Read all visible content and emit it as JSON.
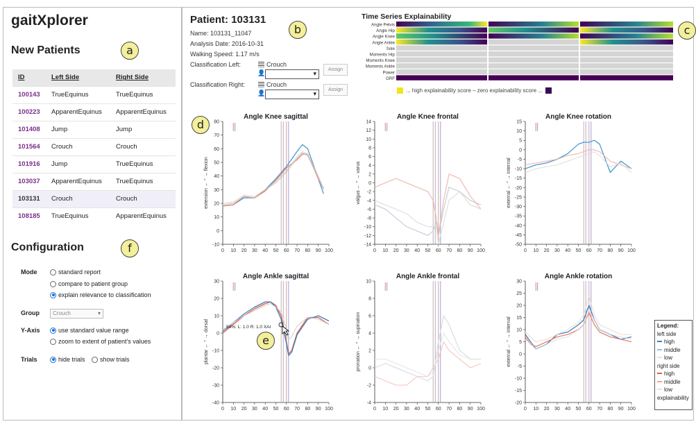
{
  "app": {
    "title": "gaitXplorer"
  },
  "markers": {
    "a": "a",
    "b": "b",
    "c": "c",
    "d": "d",
    "e": "e",
    "f": "f"
  },
  "new_patients": {
    "title": "New Patients",
    "columns": [
      "ID",
      "Left Side",
      "Right Side"
    ],
    "rows": [
      {
        "id": "100143",
        "left": "TrueEquinus",
        "right": "TrueEquinus"
      },
      {
        "id": "100223",
        "left": "ApparentEquinus",
        "right": "ApparentEquinus"
      },
      {
        "id": "101408",
        "left": "Jump",
        "right": "Jump"
      },
      {
        "id": "101564",
        "left": "Crouch",
        "right": "Crouch"
      },
      {
        "id": "101916",
        "left": "Jump",
        "right": "TrueEquinus"
      },
      {
        "id": "103037",
        "left": "ApparentEquinus",
        "right": "TrueEquinus"
      },
      {
        "id": "103131",
        "left": "Crouch",
        "right": "Crouch"
      },
      {
        "id": "108185",
        "left": "TrueEquinus",
        "right": "ApparentEquinus"
      }
    ],
    "selected_id": "103131"
  },
  "configuration": {
    "title": "Configuration",
    "mode_label": "Mode",
    "mode_options": [
      "standard report",
      "compare to patient group",
      "explain relevance to classification"
    ],
    "mode_selected": 2,
    "group_label": "Group",
    "group_value": "Crouch",
    "yaxis_label": "Y-Axis",
    "yaxis_options": [
      "use standard value range",
      "zoom to extent of patient's values"
    ],
    "yaxis_selected": 0,
    "trials_label": "Trials",
    "trials_options": [
      "hide trials",
      "show trials"
    ],
    "trials_selected": 0
  },
  "patient": {
    "title": "Patient: 103131",
    "name": "Name: 103131_11047",
    "analysis_date": "Analysis Date: 2016-10-31",
    "walking_speed": "Walking Speed: 1.17 m/s",
    "class_left_label": "Classification Left:",
    "class_left_value": "Crouch",
    "class_right_label": "Classification Right:",
    "class_right_value": "Crouch",
    "assign_label": "Assign"
  },
  "time_series": {
    "title": "Time Series Explainability",
    "rows": [
      "Angle Pelvis",
      "Angle Hip",
      "Angle Knee",
      "Angle Ankle",
      "Sole",
      "Moments Hip",
      "Moments Knee",
      "Moments Ankle",
      "Power",
      "GRF"
    ],
    "legend_text": "... high explainability score – zero explainability score ...",
    "color_high": "#f2e41c",
    "color_zero": "#3b0a55"
  },
  "chart_data": [
    {
      "type": "line",
      "title": "Angle Knee sagittal",
      "ylabel": "extension ← ° → flexion",
      "xlim": [
        0,
        100
      ],
      "ylim": [
        -10,
        80
      ],
      "xticks": [
        0,
        10,
        20,
        30,
        40,
        50,
        60,
        70,
        80,
        90,
        100
      ],
      "yticks": [
        -10,
        0,
        10,
        20,
        30,
        40,
        50,
        60,
        70,
        80
      ],
      "x": [
        0,
        10,
        20,
        30,
        40,
        50,
        60,
        70,
        75,
        80,
        90,
        95
      ],
      "series": [
        {
          "values": [
            18,
            19,
            24,
            24,
            30,
            38,
            47,
            58,
            63,
            60,
            38,
            27
          ],
          "color": "#4a9ad0",
          "opacity": 1
        },
        {
          "values": [
            18,
            19,
            25,
            24,
            29,
            37,
            46,
            52,
            56,
            56,
            38,
            31
          ],
          "color": "#e8836a",
          "opacity": 1
        },
        {
          "values": [
            19,
            20,
            25,
            24,
            30,
            35,
            43,
            53,
            57,
            55,
            39,
            30
          ],
          "color": "#bfbfbf",
          "opacity": 0.7
        },
        {
          "values": [
            20,
            21,
            26,
            25,
            30,
            36,
            44,
            54,
            58,
            56,
            40,
            31
          ],
          "color": "#d8c4bd",
          "opacity": 0.6
        }
      ]
    },
    {
      "type": "line",
      "title": "Angle Knee frontal",
      "ylabel": "valgus ← ° → varus",
      "xlim": [
        0,
        100
      ],
      "ylim": [
        -14,
        14
      ],
      "xticks": [
        0,
        10,
        20,
        30,
        40,
        50,
        60,
        70,
        80,
        90,
        100
      ],
      "yticks": [
        -14,
        -12,
        -10,
        -8,
        -6,
        -4,
        -2,
        0,
        2,
        4,
        6,
        8,
        10,
        12,
        14
      ],
      "x": [
        0,
        10,
        20,
        30,
        40,
        50,
        55,
        58,
        60,
        65,
        70,
        80,
        90,
        100
      ],
      "series": [
        {
          "values": [
            -5,
            -6,
            -8,
            -10,
            -11,
            -12,
            -11,
            -9,
            -12,
            -6,
            -1,
            -2,
            -4,
            -5
          ],
          "color": "#c8ccd8",
          "opacity": 0.9
        },
        {
          "values": [
            -1,
            0,
            1,
            0,
            -1,
            -2,
            -4,
            -8,
            -12,
            -4,
            2,
            1,
            -3,
            -6
          ],
          "color": "#e9b1a3",
          "opacity": 0.8
        },
        {
          "values": [
            -4,
            -5,
            -6,
            -7,
            -9,
            -10,
            -10,
            -10,
            -14,
            -9,
            -4,
            -2,
            -5,
            -6
          ],
          "color": "#d9d9d9",
          "opacity": 0.8
        }
      ]
    },
    {
      "type": "line",
      "title": "Angle Knee rotation",
      "ylabel": "external ← ° → internal",
      "xlim": [
        0,
        100
      ],
      "ylim": [
        -50,
        15
      ],
      "xticks": [
        0,
        10,
        20,
        30,
        40,
        50,
        60,
        70,
        80,
        90,
        100
      ],
      "yticks": [
        -50,
        -45,
        -40,
        -35,
        -30,
        -25,
        -20,
        -15,
        -10,
        -5,
        0,
        5,
        10,
        15
      ],
      "x": [
        0,
        10,
        20,
        30,
        40,
        50,
        55,
        60,
        65,
        70,
        80,
        90,
        100
      ],
      "series": [
        {
          "values": [
            -10,
            -8,
            -7,
            -5,
            -2,
            3,
            4,
            4,
            5,
            3,
            -12,
            -6,
            -10
          ],
          "color": "#4a9ad0",
          "opacity": 1
        },
        {
          "values": [
            -8,
            -7,
            -6,
            -5,
            -3,
            -2,
            -1,
            0,
            0,
            -1,
            -6,
            -8,
            -10
          ],
          "color": "#f0b3a4",
          "opacity": 0.8
        },
        {
          "values": [
            -12,
            -10,
            -9,
            -8,
            -6,
            -4,
            -3,
            -2,
            -1,
            -3,
            -9,
            -7,
            -12
          ],
          "color": "#dddddd",
          "opacity": 0.8
        }
      ]
    },
    {
      "type": "line",
      "title": "Angle Ankle sagittal",
      "ylabel": "plantar ← ° → dorsal",
      "xlim": [
        0,
        100
      ],
      "ylim": [
        -40,
        30
      ],
      "xticks": [
        0,
        10,
        20,
        30,
        40,
        50,
        60,
        70,
        80,
        90,
        100
      ],
      "yticks": [
        -40,
        -30,
        -20,
        -10,
        0,
        10,
        20,
        30
      ],
      "x": [
        0,
        10,
        20,
        30,
        40,
        45,
        50,
        55,
        60,
        62,
        65,
        70,
        80,
        90,
        100
      ],
      "series": [
        {
          "values": [
            0,
            5,
            10,
            14,
            17,
            18,
            16,
            10,
            -5,
            -12,
            -10,
            0,
            9,
            9,
            5
          ],
          "color": "#e85a3c",
          "opacity": 1
        },
        {
          "values": [
            1,
            6,
            11,
            15,
            18,
            18,
            15,
            8,
            -6,
            -13,
            -11,
            -1,
            8,
            10,
            7
          ],
          "color": "#3d7fc0",
          "opacity": 1
        },
        {
          "values": [
            2,
            6,
            10,
            13,
            16,
            17,
            15,
            12,
            2,
            -4,
            -2,
            4,
            9,
            8,
            5
          ],
          "color": "#cccccc",
          "opacity": 0.8
        }
      ]
    },
    {
      "type": "line",
      "title": "Angle Ankle frontal",
      "ylabel": "pronation ← ° → supination",
      "xlim": [
        0,
        100
      ],
      "ylim": [
        -4,
        10
      ],
      "xticks": [
        0,
        10,
        20,
        30,
        40,
        50,
        60,
        70,
        80,
        90,
        100
      ],
      "yticks": [
        -4,
        -2,
        0,
        2,
        4,
        6,
        8,
        10
      ],
      "x": [
        0,
        10,
        20,
        30,
        40,
        50,
        55,
        60,
        65,
        70,
        80,
        90,
        100
      ],
      "series": [
        {
          "values": [
            -1,
            -1.5,
            -2,
            -2,
            -1,
            -1,
            0,
            1,
            3,
            2,
            1,
            0,
            0.5
          ],
          "color": "#f2c3b6",
          "opacity": 0.8
        },
        {
          "values": [
            0,
            0.5,
            0,
            -0.5,
            -1,
            -1.5,
            -1,
            3,
            6,
            5,
            2,
            1,
            1
          ],
          "color": "#d6dbe6",
          "opacity": 0.9
        },
        {
          "values": [
            1,
            1,
            0.5,
            0,
            -0.5,
            -1,
            -0.5,
            2,
            4,
            3,
            1.5,
            1,
            1
          ],
          "color": "#e3e3e3",
          "opacity": 0.8
        }
      ]
    },
    {
      "type": "line",
      "title": "Angle Ankle rotation",
      "ylabel": "external ← ° → internal",
      "xlim": [
        0,
        100
      ],
      "ylim": [
        -20,
        30
      ],
      "xticks": [
        0,
        10,
        20,
        30,
        40,
        50,
        60,
        70,
        80,
        90,
        100
      ],
      "yticks": [
        -20,
        -15,
        -10,
        -5,
        0,
        5,
        10,
        15,
        20,
        25,
        30
      ],
      "x": [
        0,
        5,
        10,
        20,
        30,
        40,
        50,
        55,
        60,
        65,
        70,
        80,
        90,
        100
      ],
      "series": [
        {
          "values": [
            8,
            5,
            2,
            4,
            8,
            9,
            12,
            14,
            20,
            14,
            10,
            8,
            6,
            7
          ],
          "color": "#3d7fc0",
          "opacity": 1
        },
        {
          "values": [
            7,
            4,
            3,
            5,
            7,
            8,
            10,
            12,
            17,
            12,
            9,
            7,
            6,
            5
          ],
          "color": "#e9836c",
          "opacity": 1
        },
        {
          "values": [
            9,
            7,
            5,
            6,
            8,
            10,
            13,
            16,
            24,
            16,
            12,
            10,
            8,
            8
          ],
          "color": "#eadbd5",
          "opacity": 0.8
        },
        {
          "values": [
            6,
            4,
            2,
            4,
            6,
            7,
            10,
            12,
            18,
            14,
            10,
            8,
            7,
            6
          ],
          "color": "#dcdcdc",
          "opacity": 0.7
        }
      ]
    }
  ],
  "tooltip": {
    "text": "54%: L: 1.0 R: 1.0 XAI"
  },
  "legend": {
    "title": "Legend:",
    "left_side": "left side",
    "right_side": "right side",
    "levels": [
      "high",
      "middle",
      "low"
    ],
    "explainability": "explainability",
    "left_color": "#3d7fc0",
    "right_color": "#e85a3c"
  }
}
